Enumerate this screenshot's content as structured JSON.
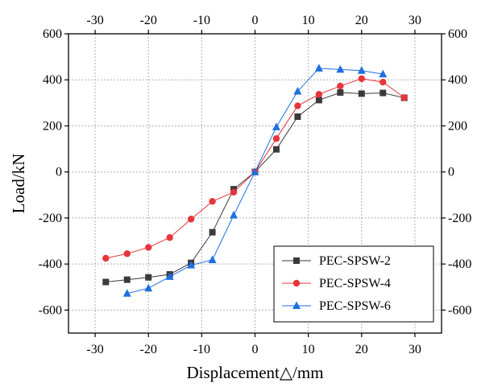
{
  "chart_data": {
    "type": "line",
    "xlabel": "Displacement△/mm",
    "ylabel": "Load/kN",
    "xlim": [
      -35,
      35
    ],
    "ylim": [
      -700,
      600
    ],
    "x_ticks": [
      -30,
      -20,
      -10,
      0,
      10,
      20,
      30
    ],
    "y_ticks": [
      -600,
      -400,
      -200,
      0,
      200,
      400,
      600
    ],
    "x_tick_labels": [
      "-30",
      "-20",
      "-10",
      "0",
      "10",
      "20",
      "30"
    ],
    "y_tick_labels": [
      "-600",
      "-400",
      "-200",
      "0",
      "200",
      "400",
      "600"
    ],
    "grid": true,
    "mirror_axes": true,
    "legend_position": "bottom-right",
    "series": [
      {
        "name": "PEC-SPSW-2",
        "color": "#3a3a3a",
        "marker": "square",
        "x": [
          -28,
          -24,
          -20,
          -16,
          -12,
          -8,
          -4,
          0,
          4,
          8,
          12,
          16,
          20,
          24,
          28
        ],
        "y": [
          -478,
          -468,
          -458,
          -445,
          -395,
          -262,
          -75,
          0,
          98,
          240,
          312,
          345,
          340,
          343,
          322
        ]
      },
      {
        "name": "PEC-SPSW-4",
        "color": "#e8353b",
        "marker": "circle",
        "x": [
          -28,
          -24,
          -20,
          -16,
          -12,
          -8,
          -4,
          0,
          4,
          8,
          12,
          16,
          20,
          24,
          28
        ],
        "y": [
          -375,
          -355,
          -328,
          -285,
          -205,
          -128,
          -88,
          0,
          145,
          287,
          337,
          373,
          405,
          390,
          323
        ]
      },
      {
        "name": "PEC-SPSW-6",
        "color": "#1f6fe0",
        "marker": "triangle",
        "x": [
          -24,
          -20,
          -16,
          -12,
          -8,
          -4,
          0,
          4,
          8,
          12,
          16,
          20,
          24
        ],
        "y": [
          -528,
          -505,
          -455,
          -405,
          -382,
          -188,
          0,
          195,
          350,
          450,
          445,
          440,
          425
        ]
      }
    ]
  }
}
